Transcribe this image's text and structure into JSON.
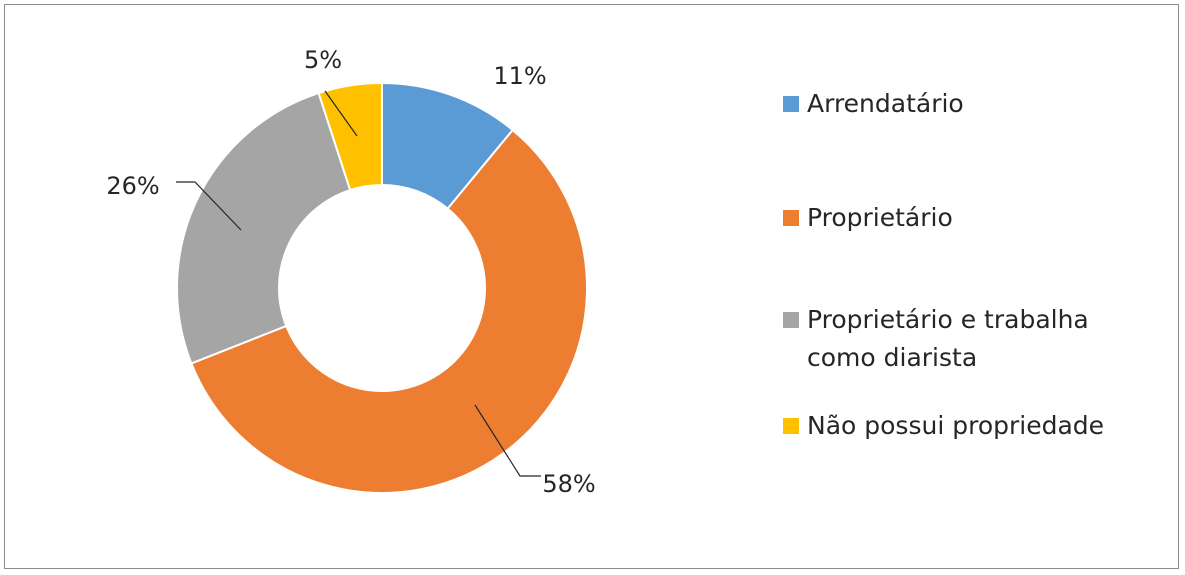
{
  "chart_data": {
    "type": "pie",
    "donut": true,
    "title": "",
    "slices": [
      {
        "label": "Arrendatário",
        "value": 11,
        "display": "11%",
        "color": "#5B9BD5"
      },
      {
        "label": "Proprietário",
        "value": 58,
        "display": "58%",
        "color": "#ED7D31"
      },
      {
        "label": "Proprietário e trabalha como diarista",
        "value": 26,
        "display": "26%",
        "color": "#A5A5A5"
      },
      {
        "label": "Não possui propriedade",
        "value": 5,
        "display": "5%",
        "color": "#FFC000"
      }
    ],
    "legend_position": "right"
  }
}
